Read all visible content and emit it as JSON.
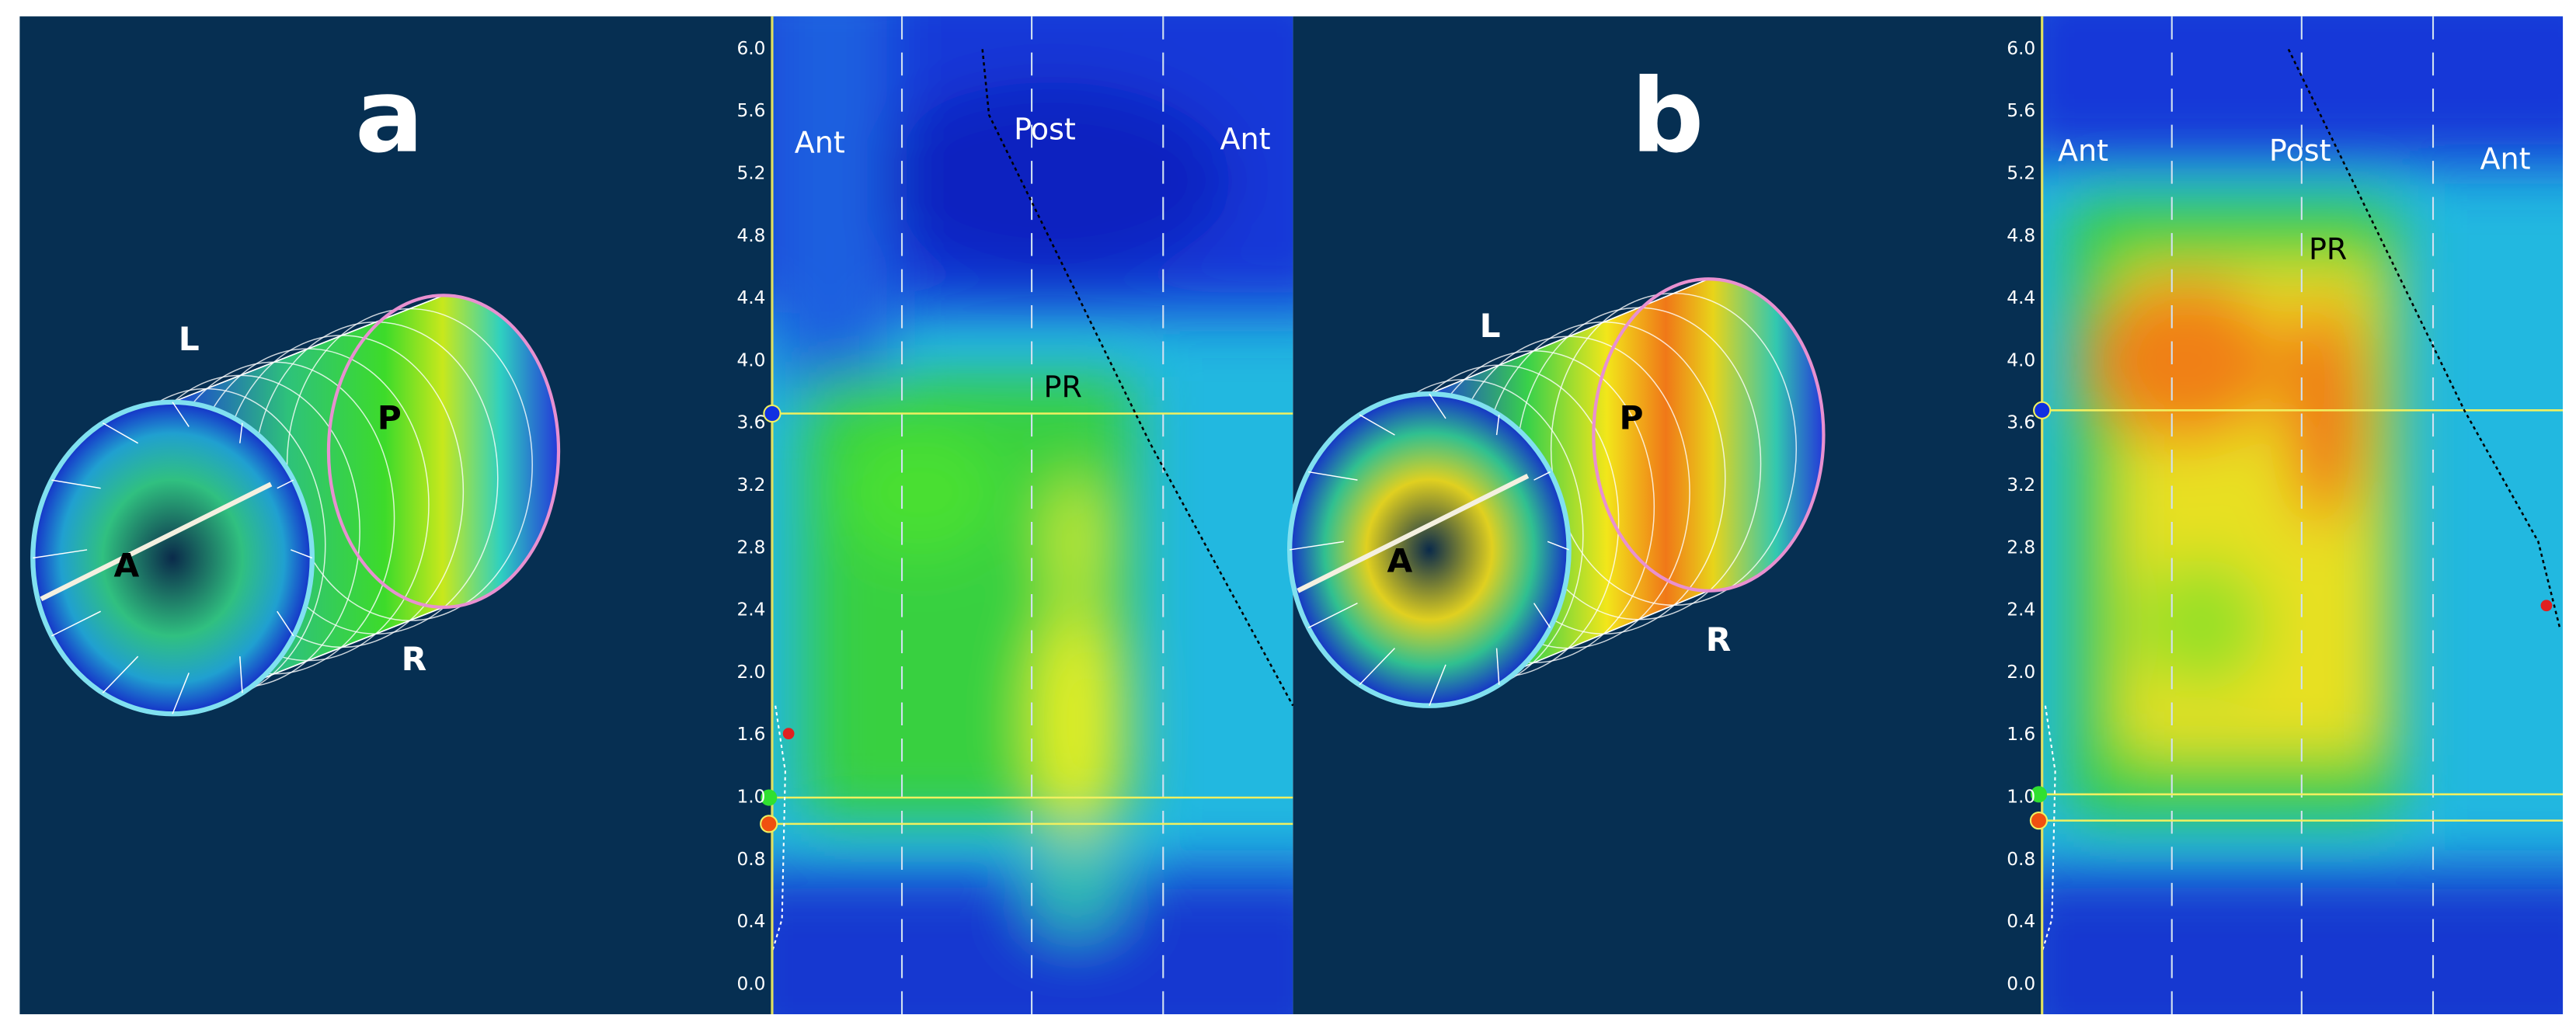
{
  "panels": [
    {
      "label": "a",
      "model_labels": [
        "L",
        "P",
        "A",
        "R"
      ],
      "map_labels": [
        "Ant",
        "Post",
        "Ant",
        "PR"
      ],
      "yticks": [
        "6.0",
        "5.6",
        "5.2",
        "4.8",
        "4.4",
        "4.0",
        "3.6",
        "3.2",
        "2.8",
        "2.4",
        "2.0",
        "1.6",
        "1.0",
        "0.8",
        "0.4",
        "0.0"
      ]
    },
    {
      "label": "b",
      "model_labels": [
        "L",
        "P",
        "A",
        "R"
      ],
      "map_labels": [
        "Ant",
        "Post",
        "Ant",
        "PR"
      ],
      "yticks": [
        "6.0",
        "5.6",
        "5.2",
        "4.8",
        "4.4",
        "4.0",
        "3.6",
        "3.2",
        "2.8",
        "2.4",
        "2.0",
        "1.6",
        "1.0",
        "0.8",
        "0.4",
        "0.0"
      ]
    }
  ]
}
